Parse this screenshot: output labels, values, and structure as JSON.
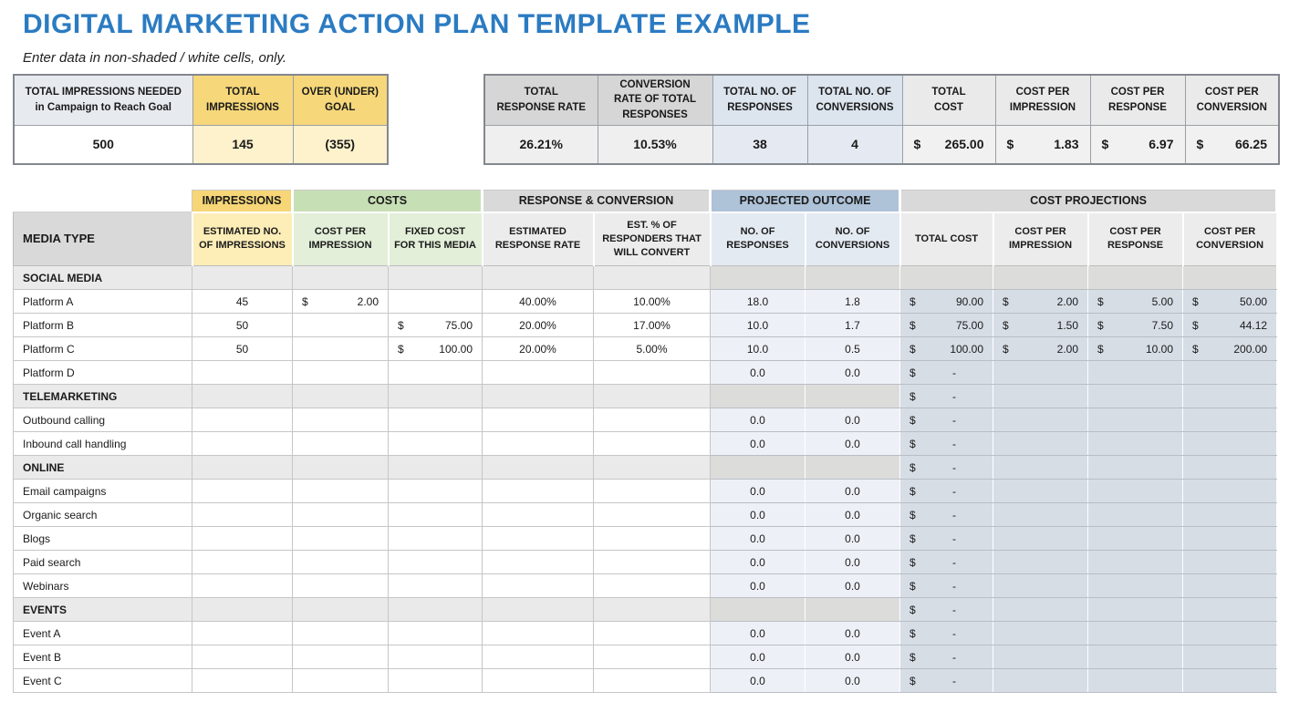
{
  "page": {
    "title": "DIGITAL MARKETING ACTION PLAN TEMPLATE EXAMPLE",
    "subtitle": "Enter data in non-shaded / white cells, only."
  },
  "colors": {
    "title_blue": "#2b7bc2",
    "gold_header": "#f6d676",
    "green_header": "#c7dfb5",
    "blue_gray_header": "#aec2d8",
    "gray_header": "#d9d9d9",
    "projection_cell": "#d6dde5"
  },
  "goal_table": {
    "columns": [
      {
        "header": "TOTAL IMPRESSIONS NEEDED\nin Campaign to Reach Goal",
        "value": "500"
      },
      {
        "header": "TOTAL\nIMPRESSIONS",
        "value": "145"
      },
      {
        "header": "OVER (UNDER)\nGOAL",
        "value": "(355)"
      }
    ]
  },
  "results_table": {
    "columns": [
      {
        "header": "TOTAL\nRESPONSE RATE",
        "value": "26.21%"
      },
      {
        "header": "CONVERSION\nRATE OF TOTAL\nRESPONSES",
        "value": "10.53%"
      },
      {
        "header": "TOTAL NO. OF\nRESPONSES",
        "value": "38"
      },
      {
        "header": "TOTAL NO. OF\nCONVERSIONS",
        "value": "4"
      },
      {
        "header": "TOTAL\nCOST",
        "currency": "$",
        "value": "265.00"
      },
      {
        "header": "COST PER\nIMPRESSION",
        "currency": "$",
        "value": "1.83"
      },
      {
        "header": "COST PER\nRESPONSE",
        "currency": "$",
        "value": "6.97"
      },
      {
        "header": "COST PER\nCONVERSION",
        "currency": "$",
        "value": "66.25"
      }
    ]
  },
  "main_table": {
    "currency": "$",
    "group_headers": [
      {
        "label": "IMPRESSIONS"
      },
      {
        "label": "COSTS"
      },
      {
        "label": "RESPONSE & CONVERSION"
      },
      {
        "label": "PROJECTED OUTCOME"
      },
      {
        "label": "COST PROJECTIONS"
      }
    ],
    "columns": [
      {
        "label": "MEDIA TYPE"
      },
      {
        "label": "ESTIMATED NO. OF IMPRESSIONS"
      },
      {
        "label": "COST PER IMPRESSION"
      },
      {
        "label": "FIXED COST FOR THIS MEDIA"
      },
      {
        "label": "ESTIMATED RESPONSE RATE"
      },
      {
        "label": "EST. % OF RESPONDERS THAT WILL CONVERT"
      },
      {
        "label": "NO. OF RESPONSES"
      },
      {
        "label": "NO. OF CONVERSIONS"
      },
      {
        "label": "TOTAL COST"
      },
      {
        "label": "COST PER IMPRESSION"
      },
      {
        "label": "COST PER RESPONSE"
      },
      {
        "label": "COST PER CONVERSION"
      }
    ],
    "rows": [
      {
        "type": "section",
        "label": "SOCIAL MEDIA",
        "values": [
          "",
          "",
          "",
          "",
          "",
          "",
          "",
          "",
          "",
          "",
          ""
        ]
      },
      {
        "type": "item",
        "label": "Platform A",
        "values": [
          "45",
          "2.00",
          "",
          "40.00%",
          "10.00%",
          "18.0",
          "1.8",
          "90.00",
          "2.00",
          "5.00",
          "50.00"
        ]
      },
      {
        "type": "item",
        "label": "Platform B",
        "values": [
          "50",
          "",
          "75.00",
          "20.00%",
          "17.00%",
          "10.0",
          "1.7",
          "75.00",
          "1.50",
          "7.50",
          "44.12"
        ]
      },
      {
        "type": "item",
        "label": "Platform C",
        "values": [
          "50",
          "",
          "100.00",
          "20.00%",
          "5.00%",
          "10.0",
          "0.5",
          "100.00",
          "2.00",
          "10.00",
          "200.00"
        ]
      },
      {
        "type": "item",
        "label": "Platform D",
        "values": [
          "",
          "",
          "",
          "",
          "",
          "0.0",
          "0.0",
          "-",
          "",
          "",
          ""
        ]
      },
      {
        "type": "section",
        "label": "TELEMARKETING",
        "values": [
          "",
          "",
          "",
          "",
          "",
          "",
          "",
          "-",
          "",
          "",
          ""
        ]
      },
      {
        "type": "item",
        "label": "Outbound calling",
        "values": [
          "",
          "",
          "",
          "",
          "",
          "0.0",
          "0.0",
          "-",
          "",
          "",
          ""
        ]
      },
      {
        "type": "item",
        "label": "Inbound call handling",
        "values": [
          "",
          "",
          "",
          "",
          "",
          "0.0",
          "0.0",
          "-",
          "",
          "",
          ""
        ]
      },
      {
        "type": "section",
        "label": "ONLINE",
        "values": [
          "",
          "",
          "",
          "",
          "",
          "",
          "",
          "-",
          "",
          "",
          ""
        ]
      },
      {
        "type": "item",
        "label": "Email campaigns",
        "values": [
          "",
          "",
          "",
          "",
          "",
          "0.0",
          "0.0",
          "-",
          "",
          "",
          ""
        ]
      },
      {
        "type": "item",
        "label": "Organic search",
        "values": [
          "",
          "",
          "",
          "",
          "",
          "0.0",
          "0.0",
          "-",
          "",
          "",
          ""
        ]
      },
      {
        "type": "item",
        "label": "Blogs",
        "values": [
          "",
          "",
          "",
          "",
          "",
          "0.0",
          "0.0",
          "-",
          "",
          "",
          ""
        ]
      },
      {
        "type": "item",
        "label": "Paid search",
        "values": [
          "",
          "",
          "",
          "",
          "",
          "0.0",
          "0.0",
          "-",
          "",
          "",
          ""
        ]
      },
      {
        "type": "item",
        "label": "Webinars",
        "values": [
          "",
          "",
          "",
          "",
          "",
          "0.0",
          "0.0",
          "-",
          "",
          "",
          ""
        ]
      },
      {
        "type": "section",
        "label": "EVENTS",
        "values": [
          "",
          "",
          "",
          "",
          "",
          "",
          "",
          "-",
          "",
          "",
          ""
        ]
      },
      {
        "type": "item",
        "label": "Event A",
        "values": [
          "",
          "",
          "",
          "",
          "",
          "0.0",
          "0.0",
          "-",
          "",
          "",
          ""
        ]
      },
      {
        "type": "item",
        "label": "Event B",
        "values": [
          "",
          "",
          "",
          "",
          "",
          "0.0",
          "0.0",
          "-",
          "",
          "",
          ""
        ]
      },
      {
        "type": "item",
        "label": "Event C",
        "values": [
          "",
          "",
          "",
          "",
          "",
          "0.0",
          "0.0",
          "-",
          "",
          "",
          ""
        ]
      }
    ]
  }
}
